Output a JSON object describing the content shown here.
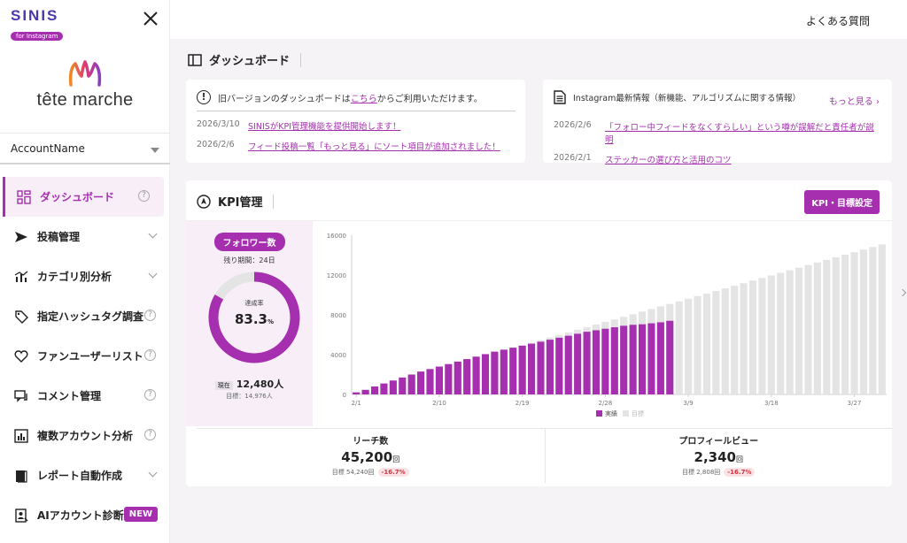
{
  "app": {
    "logo_text": "SINIS",
    "logo_badge": "for Instagram",
    "brand_name": "tête marche",
    "account_name": "AccountName",
    "faq_label": "よくある質問"
  },
  "colors": {
    "accent": "#a62fb0",
    "accent_bg": "#f7eef8",
    "placeholder_bar": "#e4e4e4",
    "delta_red": "#d0333f"
  },
  "sidebar": {
    "items": [
      {
        "label": "ダッシュボード",
        "icon": "dashboard-icon",
        "right": "help",
        "active": true
      },
      {
        "label": "投稿管理",
        "icon": "send-icon",
        "right": "chevron"
      },
      {
        "label": "カテゴリ別分析",
        "icon": "bar-chart-icon",
        "right": "chevron"
      },
      {
        "label": "指定ハッシュタグ調査",
        "icon": "tag-icon",
        "right": "help"
      },
      {
        "label": "ファンユーザーリスト",
        "icon": "heart-icon",
        "right": "help"
      },
      {
        "label": "コメント管理",
        "icon": "comment-icon",
        "right": "help"
      },
      {
        "label": "複数アカウント分析",
        "icon": "multi-chart-icon",
        "right": "help"
      },
      {
        "label": "レポート自動作成",
        "icon": "book-icon",
        "right": "chevron"
      },
      {
        "label": "AIアカウント診断",
        "icon": "ai-icon",
        "right": "new",
        "badge": "NEW"
      }
    ]
  },
  "header": {
    "title": "ダッシュボード"
  },
  "notice": {
    "text_before": "旧バージョンのダッシュボードは",
    "link": "こちら",
    "text_after": "からご利用いただけます。",
    "news": [
      {
        "date": "2026/3/10",
        "text": "SINISがKPI管理機能を提供開始します！"
      },
      {
        "date": "2026/2/6",
        "text": "フィード投稿一覧「もっと見る」にソート項目が追加されました！"
      }
    ]
  },
  "info": {
    "title": "Instagram最新情報（新機能、アルゴリズムに関する情報）",
    "more": "もっと見る ›",
    "news": [
      {
        "date": "2026/2/6",
        "text": "「フォロー中フィードをなくすらしい」という噂が誤解だと責任者が説明"
      },
      {
        "date": "2026/2/1",
        "text": "ステッカーの選び方と活用のコツ"
      }
    ]
  },
  "kpi": {
    "title": "KPI管理",
    "settings_button": "KPI・目標設定",
    "follower": {
      "badge": "フォロワー数",
      "remaining": "残り期間：24日",
      "rate_label": "達成率",
      "rate_value": "83.3",
      "rate_unit": "%",
      "rate_fraction": 0.833,
      "current_tag": "現在",
      "current_value": "12,480人",
      "target": "目標：14,976人"
    },
    "metrics": [
      {
        "title": "リーチ数",
        "value": "45,200",
        "unit": "回",
        "target": "目標 54,240回",
        "delta": "-16.7%"
      },
      {
        "title": "プロフィールビュー",
        "value": "2,340",
        "unit": "回",
        "target": "目標 2,808回",
        "delta": "-16.7%"
      }
    ]
  },
  "chart_data": {
    "type": "bar",
    "y_ticks": [
      "0",
      "4000",
      "8000",
      "12000",
      "16000"
    ],
    "ylim": [
      0,
      16000
    ],
    "x_tick_labels": [
      "2/1",
      "2/10",
      "2/19",
      "2/28",
      "3/9",
      "3/18",
      "3/27"
    ],
    "x_tick_indices": [
      0,
      9,
      18,
      27,
      36,
      45,
      54
    ],
    "legend": [
      "実績",
      "目標"
    ],
    "series": [
      {
        "name": "実績",
        "values": [
          200,
          450,
          800,
          1100,
          1400,
          1700,
          2000,
          2300,
          2550,
          2800,
          3050,
          3300,
          3550,
          3800,
          4050,
          4300,
          4500,
          4700,
          4900,
          5100,
          5300,
          5500,
          5700,
          5900,
          6100,
          6300,
          6450,
          6600,
          6750,
          6900,
          7000,
          7050,
          7150,
          7250,
          7400
        ]
      },
      {
        "name": "目標",
        "values": [
          260,
          520,
          780,
          1040,
          1300,
          1560,
          1820,
          2080,
          2340,
          2600,
          2860,
          3120,
          3380,
          3640,
          3900,
          4160,
          4420,
          4680,
          4940,
          5200,
          5460,
          5720,
          5980,
          6240,
          6500,
          6760,
          7020,
          7280,
          7540,
          7800,
          8060,
          8320,
          8580,
          8840,
          9100,
          9360,
          9620,
          9880,
          10140,
          10400,
          10660,
          10920,
          11180,
          11440,
          11700,
          11960,
          12220,
          12480,
          12740,
          13000,
          13260,
          13520,
          13780,
          14040,
          14300,
          14560,
          14820,
          15080
        ]
      }
    ]
  }
}
